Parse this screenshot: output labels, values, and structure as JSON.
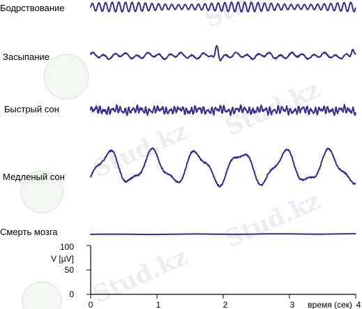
{
  "chart_data": {
    "type": "line",
    "xlim": [
      0,
      4
    ],
    "ylim": [
      0,
      100
    ],
    "x_ticks": [
      "0",
      "1",
      "2",
      "3",
      "4"
    ],
    "y_ticks": [
      "0",
      "50",
      "100"
    ],
    "xlabel": "время (сек)",
    "ylabel": "V [µV]",
    "grid": false,
    "legend": "none",
    "line_color": "#3a2b86",
    "series": [
      {
        "name": "Бодрствование",
        "pattern": "alpha",
        "amplitude_uV": 10,
        "frequency_hz": 10
      },
      {
        "name": "Засыпание",
        "pattern": "theta",
        "amplitude_uV": 8,
        "frequency_hz": 6,
        "spikes": [
          {
            "x": 1.9,
            "amplitude_uV": 22
          },
          {
            "x": 3.95,
            "amplitude_uV": 14
          }
        ]
      },
      {
        "name": "Быстрый сон",
        "pattern": "mixed_fast",
        "amplitude_uV": 10,
        "frequency_hz": 16
      },
      {
        "name": "Медленый сон",
        "pattern": "delta",
        "amplitude_uV": 40,
        "frequency_hz": 1.5
      },
      {
        "name": "Смерть мозга",
        "pattern": "flat",
        "amplitude_uV": 1,
        "frequency_hz": 0
      }
    ]
  },
  "watermark": {
    "text": "Stud.kz"
  }
}
